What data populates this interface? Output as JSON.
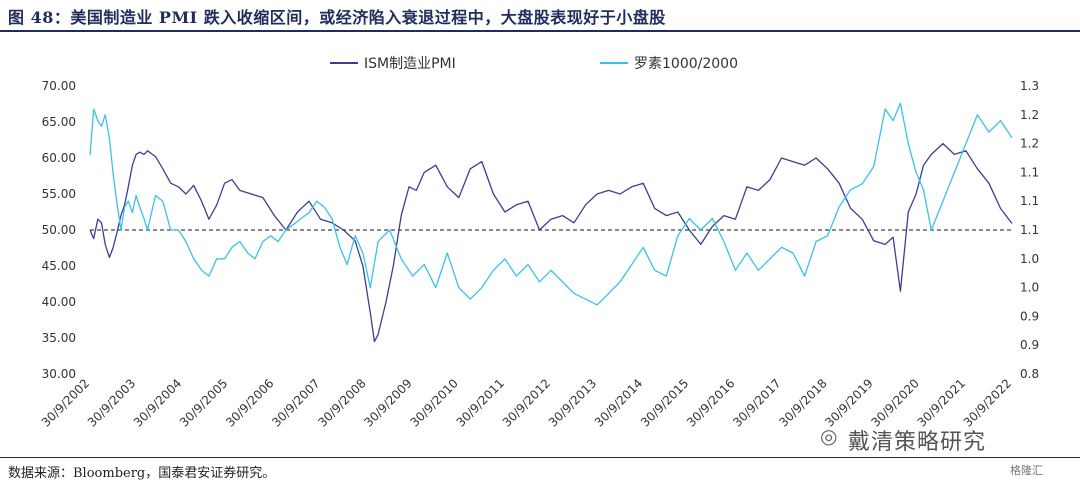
{
  "figure": {
    "title": "图 48：美国制造业 PMI 跌入收缩区间，或经济陷入衰退过程中，大盘股表现好于小盘股",
    "source": "数据来源：Bloomberg，国泰君安证券研究。",
    "watermark": "戴清策略研究",
    "watermark_icon": "wechat-icon",
    "brand": "格隆汇"
  },
  "chart_data": {
    "type": "line",
    "title": "",
    "xlabel": "",
    "y_left": {
      "label": "",
      "range": [
        30,
        70
      ],
      "ticks": [
        "70.00",
        "65.00",
        "60.00",
        "55.00",
        "50.00",
        "45.00",
        "40.00",
        "35.00",
        "30.00"
      ]
    },
    "y_right": {
      "label": "",
      "range": [
        0.8,
        1.3
      ],
      "ticks": [
        "1.3",
        "1.2",
        "1.2",
        "1.1",
        "1.1",
        "1.1",
        "1.0",
        "1.0",
        "0.9",
        "0.9",
        "0.8"
      ]
    },
    "x_tick_labels": [
      "30/9/2002",
      "30/9/2003",
      "30/9/2004",
      "30/9/2005",
      "30/9/2006",
      "30/9/2007",
      "30/9/2008",
      "30/9/2009",
      "30/9/2010",
      "30/9/2011",
      "30/9/2012",
      "30/9/2013",
      "30/9/2014",
      "30/9/2015",
      "30/9/2016",
      "30/9/2017",
      "30/9/2018",
      "30/9/2019",
      "30/9/2020",
      "30/9/2021",
      "30/9/2022"
    ],
    "reference_line": {
      "axis": "left",
      "value": 50,
      "style": "dashed"
    },
    "legend_position": "top-center",
    "series": [
      {
        "name": "ISM制造业PMI",
        "axis": "left",
        "color": "#3b3f94",
        "x": [
          2002.75,
          2002.83,
          2002.92,
          2003.0,
          2003.08,
          2003.17,
          2003.25,
          2003.33,
          2003.42,
          2003.5,
          2003.58,
          2003.67,
          2003.75,
          2003.83,
          2003.92,
          2004.0,
          2004.17,
          2004.33,
          2004.5,
          2004.67,
          2004.83,
          2005.0,
          2005.17,
          2005.33,
          2005.5,
          2005.67,
          2005.83,
          2006.0,
          2006.25,
          2006.5,
          2006.75,
          2007.0,
          2007.25,
          2007.5,
          2007.75,
          2008.0,
          2008.25,
          2008.5,
          2008.67,
          2008.83,
          2008.92,
          2009.0,
          2009.17,
          2009.33,
          2009.5,
          2009.67,
          2009.83,
          2010.0,
          2010.25,
          2010.5,
          2010.75,
          2011.0,
          2011.25,
          2011.5,
          2011.75,
          2012.0,
          2012.25,
          2012.5,
          2012.75,
          2013.0,
          2013.25,
          2013.5,
          2013.75,
          2014.0,
          2014.25,
          2014.5,
          2014.75,
          2015.0,
          2015.25,
          2015.5,
          2015.75,
          2016.0,
          2016.25,
          2016.5,
          2016.75,
          2017.0,
          2017.25,
          2017.5,
          2017.75,
          2018.0,
          2018.25,
          2018.5,
          2018.75,
          2019.0,
          2019.25,
          2019.5,
          2019.75,
          2020.0,
          2020.17,
          2020.33,
          2020.5,
          2020.67,
          2020.83,
          2021.0,
          2021.25,
          2021.5,
          2021.75,
          2022.0,
          2022.25,
          2022.5,
          2022.75
        ],
        "values": [
          50.0,
          48.8,
          51.5,
          51.0,
          48.0,
          46.2,
          47.5,
          49.5,
          52.0,
          53.5,
          56.0,
          59.0,
          60.5,
          60.8,
          60.5,
          61.0,
          60.2,
          58.5,
          56.5,
          56.0,
          55.0,
          56.2,
          54.0,
          51.5,
          53.5,
          56.5,
          57.0,
          55.5,
          55.0,
          54.5,
          52.0,
          50.0,
          52.5,
          54.0,
          51.5,
          51.0,
          50.0,
          48.5,
          45.0,
          38.5,
          34.5,
          35.5,
          40.0,
          45.0,
          52.0,
          56.0,
          55.5,
          58.0,
          59.0,
          56.0,
          54.5,
          58.5,
          59.5,
          55.0,
          52.5,
          53.5,
          54.0,
          50.0,
          51.5,
          52.0,
          51.0,
          53.5,
          55.0,
          55.5,
          55.0,
          56.0,
          56.5,
          53.0,
          52.0,
          52.5,
          50.0,
          48.0,
          50.5,
          52.0,
          51.5,
          56.0,
          55.5,
          57.0,
          60.0,
          59.5,
          59.0,
          60.0,
          58.5,
          56.5,
          53.0,
          51.5,
          48.5,
          48.0,
          49.0,
          41.5,
          52.5,
          55.0,
          59.0,
          60.5,
          62.0,
          60.5,
          61.0,
          58.5,
          56.5,
          53.0,
          50.9
        ]
      },
      {
        "name": "罗素1000/2000",
        "axis": "right",
        "color": "#39c2ea",
        "x": [
          2002.75,
          2002.83,
          2002.92,
          2003.0,
          2003.08,
          2003.17,
          2003.25,
          2003.33,
          2003.42,
          2003.5,
          2003.58,
          2003.67,
          2003.75,
          2003.83,
          2003.92,
          2004.0,
          2004.17,
          2004.33,
          2004.5,
          2004.67,
          2004.83,
          2005.0,
          2005.17,
          2005.33,
          2005.5,
          2005.67,
          2005.83,
          2006.0,
          2006.17,
          2006.33,
          2006.5,
          2006.67,
          2006.83,
          2007.0,
          2007.17,
          2007.33,
          2007.5,
          2007.67,
          2007.83,
          2008.0,
          2008.17,
          2008.33,
          2008.5,
          2008.67,
          2008.83,
          2009.0,
          2009.25,
          2009.5,
          2009.75,
          2010.0,
          2010.25,
          2010.5,
          2010.75,
          2011.0,
          2011.25,
          2011.5,
          2011.75,
          2012.0,
          2012.25,
          2012.5,
          2012.75,
          2013.0,
          2013.25,
          2013.5,
          2013.75,
          2014.0,
          2014.25,
          2014.5,
          2014.75,
          2015.0,
          2015.25,
          2015.5,
          2015.75,
          2016.0,
          2016.25,
          2016.5,
          2016.75,
          2017.0,
          2017.25,
          2017.5,
          2017.75,
          2018.0,
          2018.25,
          2018.5,
          2018.75,
          2019.0,
          2019.25,
          2019.5,
          2019.75,
          2020.0,
          2020.17,
          2020.33,
          2020.5,
          2020.67,
          2020.83,
          2021.0,
          2021.25,
          2021.5,
          2021.75,
          2022.0,
          2022.25,
          2022.5,
          2022.75
        ],
        "values": [
          1.18,
          1.26,
          1.24,
          1.23,
          1.25,
          1.21,
          1.15,
          1.1,
          1.05,
          1.09,
          1.1,
          1.08,
          1.11,
          1.09,
          1.07,
          1.05,
          1.11,
          1.1,
          1.05,
          1.05,
          1.03,
          1.0,
          0.98,
          0.97,
          1.0,
          1.0,
          1.02,
          1.03,
          1.01,
          1.0,
          1.03,
          1.04,
          1.03,
          1.05,
          1.06,
          1.07,
          1.08,
          1.1,
          1.09,
          1.07,
          1.02,
          0.99,
          1.04,
          1.01,
          0.95,
          1.03,
          1.05,
          1.0,
          0.97,
          0.99,
          0.95,
          1.01,
          0.95,
          0.93,
          0.95,
          0.98,
          1.0,
          0.97,
          0.99,
          0.96,
          0.98,
          0.96,
          0.94,
          0.93,
          0.92,
          0.94,
          0.96,
          0.99,
          1.02,
          0.98,
          0.97,
          1.04,
          1.07,
          1.05,
          1.07,
          1.03,
          0.98,
          1.01,
          0.98,
          1.0,
          1.02,
          1.01,
          0.97,
          1.03,
          1.04,
          1.09,
          1.12,
          1.13,
          1.16,
          1.26,
          1.24,
          1.27,
          1.2,
          1.15,
          1.12,
          1.05,
          1.1,
          1.15,
          1.2,
          1.25,
          1.22,
          1.24,
          1.21
        ]
      }
    ]
  }
}
